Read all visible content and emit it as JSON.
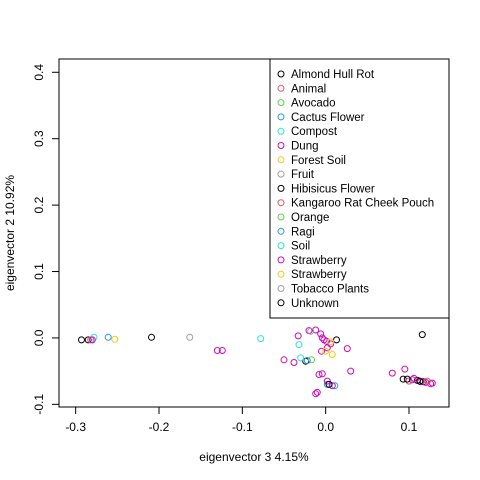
{
  "chart_data": {
    "type": "scatter",
    "xlabel": "eigenvector 3 4.15%",
    "ylabel": "eigenvector 2 10.92%",
    "xlim": [
      -0.32,
      0.148
    ],
    "ylim": [
      -0.104,
      0.42
    ],
    "xticks": [
      -0.3,
      -0.2,
      -0.1,
      0.0,
      0.1
    ],
    "xtick_labels": [
      "-0.3",
      "-0.2",
      "-0.1",
      "0.0",
      "0.1"
    ],
    "yticks": [
      -0.1,
      0.0,
      0.1,
      0.2,
      0.3,
      0.4
    ],
    "ytick_labels": [
      "-0.1",
      "0.0",
      "0.1",
      "0.2",
      "0.3",
      "0.4"
    ],
    "grid": false,
    "legend_position": "top-right",
    "series": [
      {
        "name": "Almond Hull Rot",
        "color": "#000000",
        "points": [
          [
            -0.293,
            -0.003
          ],
          [
            -0.285,
            -0.003
          ],
          [
            -0.209,
            0.001
          ],
          [
            0.116,
            0.005
          ],
          [
            0.093,
            -0.062
          ],
          [
            0.11,
            -0.064
          ],
          [
            0.117,
            -0.066
          ],
          [
            0.013,
            -0.003
          ],
          [
            -0.024,
            -0.035
          ]
        ]
      },
      {
        "name": "Animal",
        "color": "#DF536B",
        "points": [
          [
            -0.282,
            -0.003
          ],
          [
            0.1,
            -0.065
          ]
        ]
      },
      {
        "name": "Avocado",
        "color": "#61D04F",
        "points": [
          [
            -0.017,
            -0.033
          ]
        ]
      },
      {
        "name": "Cactus Flower",
        "color": "#2297E6",
        "points": [
          [
            -0.261,
            0.001
          ],
          [
            0.002,
            -0.07
          ],
          [
            0.011,
            -0.072
          ]
        ]
      },
      {
        "name": "Compost",
        "color": "#28E2E5",
        "points": [
          [
            -0.278,
            0.001
          ],
          [
            -0.078,
            -0.001
          ],
          [
            -0.032,
            -0.01
          ]
        ]
      },
      {
        "name": "Dung",
        "color": "#CD0BBC",
        "points": [
          [
            -0.28,
            -0.003
          ],
          [
            -0.13,
            -0.019
          ],
          [
            -0.124,
            -0.019
          ],
          [
            -0.033,
            0.003
          ],
          [
            -0.02,
            0.011
          ],
          [
            -0.012,
            0.012
          ],
          [
            -0.006,
            0.006
          ],
          [
            -0.004,
            0.0
          ],
          [
            -0.002,
            -0.003
          ],
          [
            0.001,
            -0.005
          ],
          [
            0.006,
            -0.009
          ],
          [
            0.002,
            -0.015
          ],
          [
            -0.005,
            -0.02
          ],
          [
            -0.038,
            -0.037
          ],
          [
            -0.05,
            -0.033
          ],
          [
            -0.008,
            -0.055
          ],
          [
            -0.004,
            -0.054
          ],
          [
            -0.01,
            -0.082
          ],
          [
            -0.012,
            -0.084
          ],
          [
            0.03,
            -0.05
          ],
          [
            0.095,
            -0.047
          ],
          [
            0.104,
            -0.063
          ],
          [
            0.114,
            -0.066
          ],
          [
            0.12,
            -0.067
          ],
          [
            0.126,
            -0.069
          ],
          [
            0.128,
            -0.068
          ],
          [
            0.08,
            -0.053
          ],
          [
            0.026,
            -0.016
          ],
          [
            0.002,
            -0.065
          ],
          [
            0.008,
            -0.072
          ]
        ]
      },
      {
        "name": "Forest Soil",
        "color": "#F5C710",
        "points": [
          [
            -0.253,
            -0.002
          ],
          [
            0.0,
            -0.02
          ],
          [
            0.008,
            -0.025
          ],
          [
            0.006,
            -0.006
          ]
        ]
      },
      {
        "name": "Fruit",
        "color": "#9E9E9E",
        "points": [
          [
            -0.163,
            0.001
          ]
        ]
      },
      {
        "name": "Hibisicus Flower",
        "color": "#000000",
        "points": [
          [
            0.098,
            -0.062
          ]
        ]
      },
      {
        "name": "Kangaroo Rat Cheek Pouch",
        "color": "#DF536B",
        "points": [
          [
            0.122,
            -0.065
          ]
        ]
      },
      {
        "name": "Orange",
        "color": "#61D04F",
        "points": []
      },
      {
        "name": "Ragi",
        "color": "#2297E6",
        "points": [
          [
            -0.022,
            -0.034
          ]
        ]
      },
      {
        "name": "Soil",
        "color": "#28E2E5",
        "points": [
          [
            -0.03,
            -0.03
          ]
        ]
      },
      {
        "name": "Strawberry",
        "color": "#CD0BBC",
        "points": [
          [
            0.106,
            -0.061
          ]
        ]
      },
      {
        "name": "Strawberry",
        "color": "#F5C710",
        "points": []
      },
      {
        "name": "Tobacco Plants",
        "color": "#9E9E9E",
        "points": [
          [
            -0.018,
            0.01
          ]
        ]
      },
      {
        "name": "Unknown",
        "color": "#000000",
        "points": [
          [
            0.004,
            -0.07
          ],
          [
            0.113,
            -0.065
          ]
        ]
      }
    ]
  }
}
